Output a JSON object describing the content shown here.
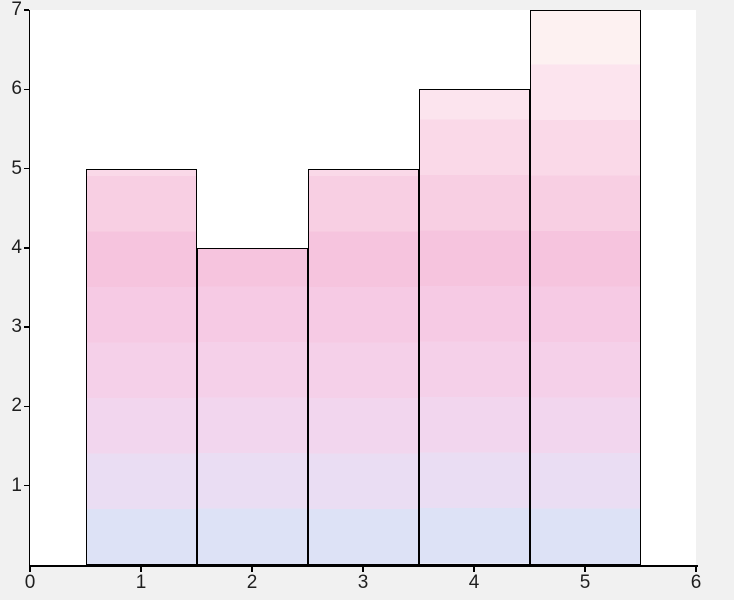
{
  "figure": {
    "background_color": "#f1f1f1",
    "plot_background_color": "#ffffff",
    "axis_color": "#000000",
    "tick_label_color": "#1f1f1f",
    "bar_edge_color": "#000000"
  },
  "chart_data": {
    "type": "bar",
    "title": "",
    "xlabel": "",
    "ylabel": "",
    "x": [
      1,
      2,
      3,
      4,
      5
    ],
    "values": [
      5,
      4,
      5,
      6,
      7
    ],
    "bar_width": 1,
    "xlim": [
      0,
      6
    ],
    "ylim": [
      0,
      7
    ],
    "x_ticks": [
      0,
      1,
      2,
      3,
      4,
      5,
      6
    ],
    "y_ticks": [
      1,
      2,
      3,
      4,
      5,
      6,
      7
    ],
    "grid": false,
    "legend": null,
    "gradient_bands": [
      {
        "from": 0.0,
        "to": 0.7,
        "color": "#dde2f6"
      },
      {
        "from": 0.7,
        "to": 1.4,
        "color": "#eaddf3"
      },
      {
        "from": 1.4,
        "to": 2.1,
        "color": "#f2d6ee"
      },
      {
        "from": 2.1,
        "to": 2.8,
        "color": "#f5d0e9"
      },
      {
        "from": 2.8,
        "to": 3.5,
        "color": "#f6cae4"
      },
      {
        "from": 3.5,
        "to": 4.2,
        "color": "#f6c4de"
      },
      {
        "from": 4.2,
        "to": 4.9,
        "color": "#f8cfe3"
      },
      {
        "from": 4.9,
        "to": 5.6,
        "color": "#fad9e8"
      },
      {
        "from": 5.6,
        "to": 6.3,
        "color": "#fce4ee"
      },
      {
        "from": 6.3,
        "to": 7.0,
        "color": "#fdf1f1"
      }
    ]
  }
}
